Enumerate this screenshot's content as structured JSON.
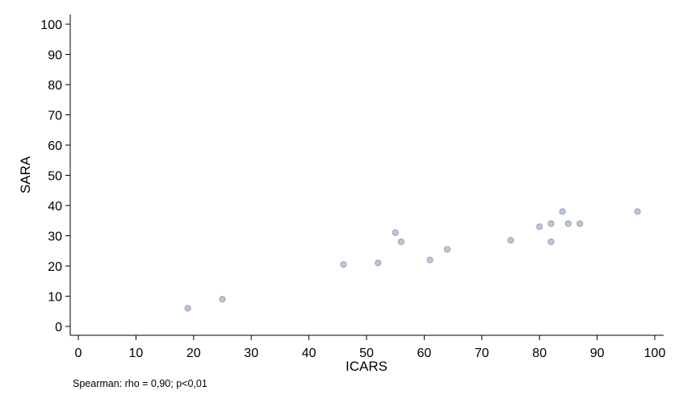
{
  "chart_data": {
    "type": "scatter",
    "title": "",
    "xlabel": "ICARS",
    "ylabel": "SARA",
    "xlim": [
      0,
      100
    ],
    "ylim": [
      0,
      100
    ],
    "x_ticks": [
      0,
      10,
      20,
      30,
      40,
      50,
      60,
      70,
      80,
      90,
      100
    ],
    "y_ticks": [
      0,
      10,
      20,
      30,
      40,
      50,
      60,
      70,
      80,
      90,
      100
    ],
    "grid": false,
    "marker_color": "#bcc8d8",
    "marker_edge_color": "#8c9bb0",
    "points": [
      {
        "x": 19,
        "y": 6
      },
      {
        "x": 25,
        "y": 9
      },
      {
        "x": 46,
        "y": 20.5
      },
      {
        "x": 52,
        "y": 21
      },
      {
        "x": 55,
        "y": 31
      },
      {
        "x": 56,
        "y": 28
      },
      {
        "x": 61,
        "y": 22
      },
      {
        "x": 64,
        "y": 25.5
      },
      {
        "x": 75,
        "y": 28.5
      },
      {
        "x": 80,
        "y": 33
      },
      {
        "x": 82,
        "y": 34
      },
      {
        "x": 82,
        "y": 28
      },
      {
        "x": 84,
        "y": 38
      },
      {
        "x": 85,
        "y": 34
      },
      {
        "x": 87,
        "y": 34
      },
      {
        "x": 97,
        "y": 38
      }
    ],
    "annotation": "Spearman: rho = 0,90; p<0,01"
  }
}
